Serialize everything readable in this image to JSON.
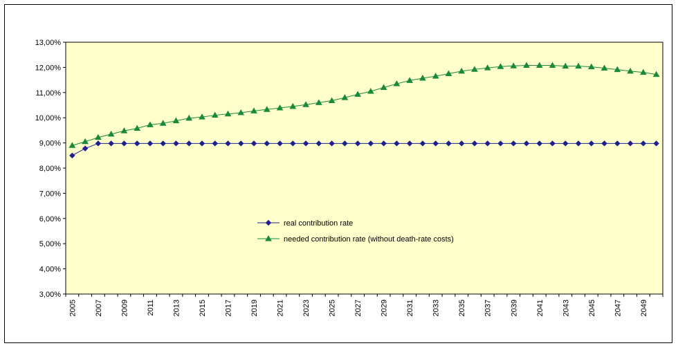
{
  "chart_data": {
    "type": "line",
    "title": "",
    "xlabel": "",
    "ylabel": "",
    "x": [
      2005,
      2006,
      2007,
      2008,
      2009,
      2010,
      2011,
      2012,
      2013,
      2014,
      2015,
      2016,
      2017,
      2018,
      2019,
      2020,
      2021,
      2022,
      2023,
      2024,
      2025,
      2026,
      2027,
      2028,
      2029,
      2030,
      2031,
      2032,
      2033,
      2034,
      2035,
      2036,
      2037,
      2038,
      2039,
      2040,
      2041,
      2042,
      2043,
      2044,
      2045,
      2046,
      2047,
      2048,
      2049,
      2050
    ],
    "x_tick_labels": [
      "2005",
      "2007",
      "2009",
      "2011",
      "2013",
      "2015",
      "2017",
      "2019",
      "2021",
      "2023",
      "2025",
      "2027",
      "2029",
      "2031",
      "2033",
      "2035",
      "2037",
      "2039",
      "2041",
      "2043",
      "2045",
      "2047",
      "2049"
    ],
    "y_tick_labels": [
      "3,00%",
      "4,00%",
      "5,00%",
      "6,00%",
      "7,00%",
      "8,00%",
      "9,00%",
      "10,00%",
      "11,00%",
      "12,00%",
      "13,00%"
    ],
    "ylim": [
      3,
      13
    ],
    "grid": "none",
    "legend_placement": "center",
    "background_color": "#FFFFCC",
    "series": [
      {
        "name": "real contribution rate",
        "color": "#1F1F8F",
        "marker": "diamond",
        "values": [
          8.5,
          8.78,
          8.98,
          8.98,
          8.98,
          8.98,
          8.98,
          8.98,
          8.98,
          8.98,
          8.98,
          8.98,
          8.98,
          8.98,
          8.98,
          8.98,
          8.98,
          8.98,
          8.98,
          8.98,
          8.98,
          8.98,
          8.98,
          8.98,
          8.98,
          8.98,
          8.98,
          8.98,
          8.98,
          8.98,
          8.98,
          8.98,
          8.98,
          8.98,
          8.98,
          8.98,
          8.98,
          8.98,
          8.98,
          8.98,
          8.98,
          8.98,
          8.98,
          8.98,
          8.98,
          8.98
        ]
      },
      {
        "name": "needed contribution rate (without death-rate costs)",
        "color": "#1A8A3A",
        "marker": "triangle",
        "values": [
          8.9,
          9.05,
          9.22,
          9.35,
          9.48,
          9.58,
          9.72,
          9.78,
          9.88,
          9.98,
          10.03,
          10.1,
          10.15,
          10.2,
          10.27,
          10.33,
          10.39,
          10.45,
          10.52,
          10.6,
          10.68,
          10.8,
          10.93,
          11.05,
          11.2,
          11.35,
          11.48,
          11.57,
          11.65,
          11.75,
          11.85,
          11.92,
          11.98,
          12.03,
          12.06,
          12.08,
          12.08,
          12.08,
          12.05,
          12.05,
          12.02,
          11.97,
          11.91,
          11.85,
          11.8,
          11.72
        ]
      }
    ]
  }
}
